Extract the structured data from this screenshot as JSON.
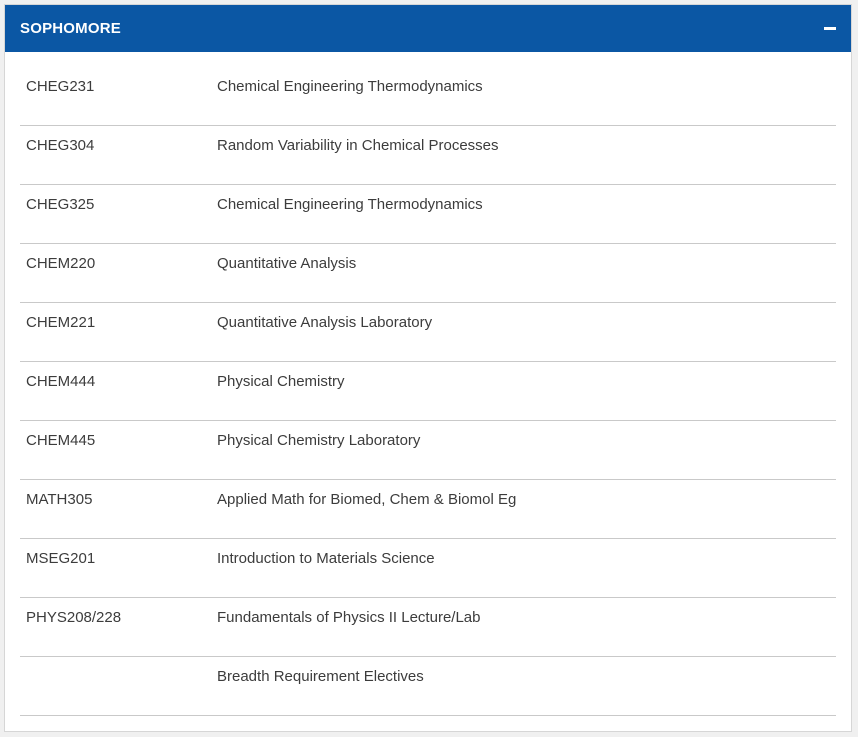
{
  "section": {
    "title": "SOPHOMORE",
    "toggle_icon": "minus-icon",
    "header_color": "#0b57a4"
  },
  "courses": [
    {
      "code": "CHEG231",
      "name": "Chemical Engineering Thermodynamics"
    },
    {
      "code": "CHEG304",
      "name": "Random Variability in Chemical Processes"
    },
    {
      "code": "CHEG325",
      "name": "Chemical Engineering Thermodynamics"
    },
    {
      "code": "CHEM220",
      "name": "Quantitative Analysis"
    },
    {
      "code": "CHEM221",
      "name": "Quantitative Analysis Laboratory"
    },
    {
      "code": "CHEM444",
      "name": "Physical Chemistry"
    },
    {
      "code": "CHEM445",
      "name": "Physical Chemistry Laboratory"
    },
    {
      "code": "MATH305",
      "name": "Applied Math for Biomed, Chem & Biomol Eg"
    },
    {
      "code": "MSEG201",
      "name": "Introduction to Materials Science"
    },
    {
      "code": "PHYS208/228",
      "name": "Fundamentals of Physics II Lecture/Lab"
    },
    {
      "code": "",
      "name": "Breadth Requirement Electives"
    }
  ]
}
